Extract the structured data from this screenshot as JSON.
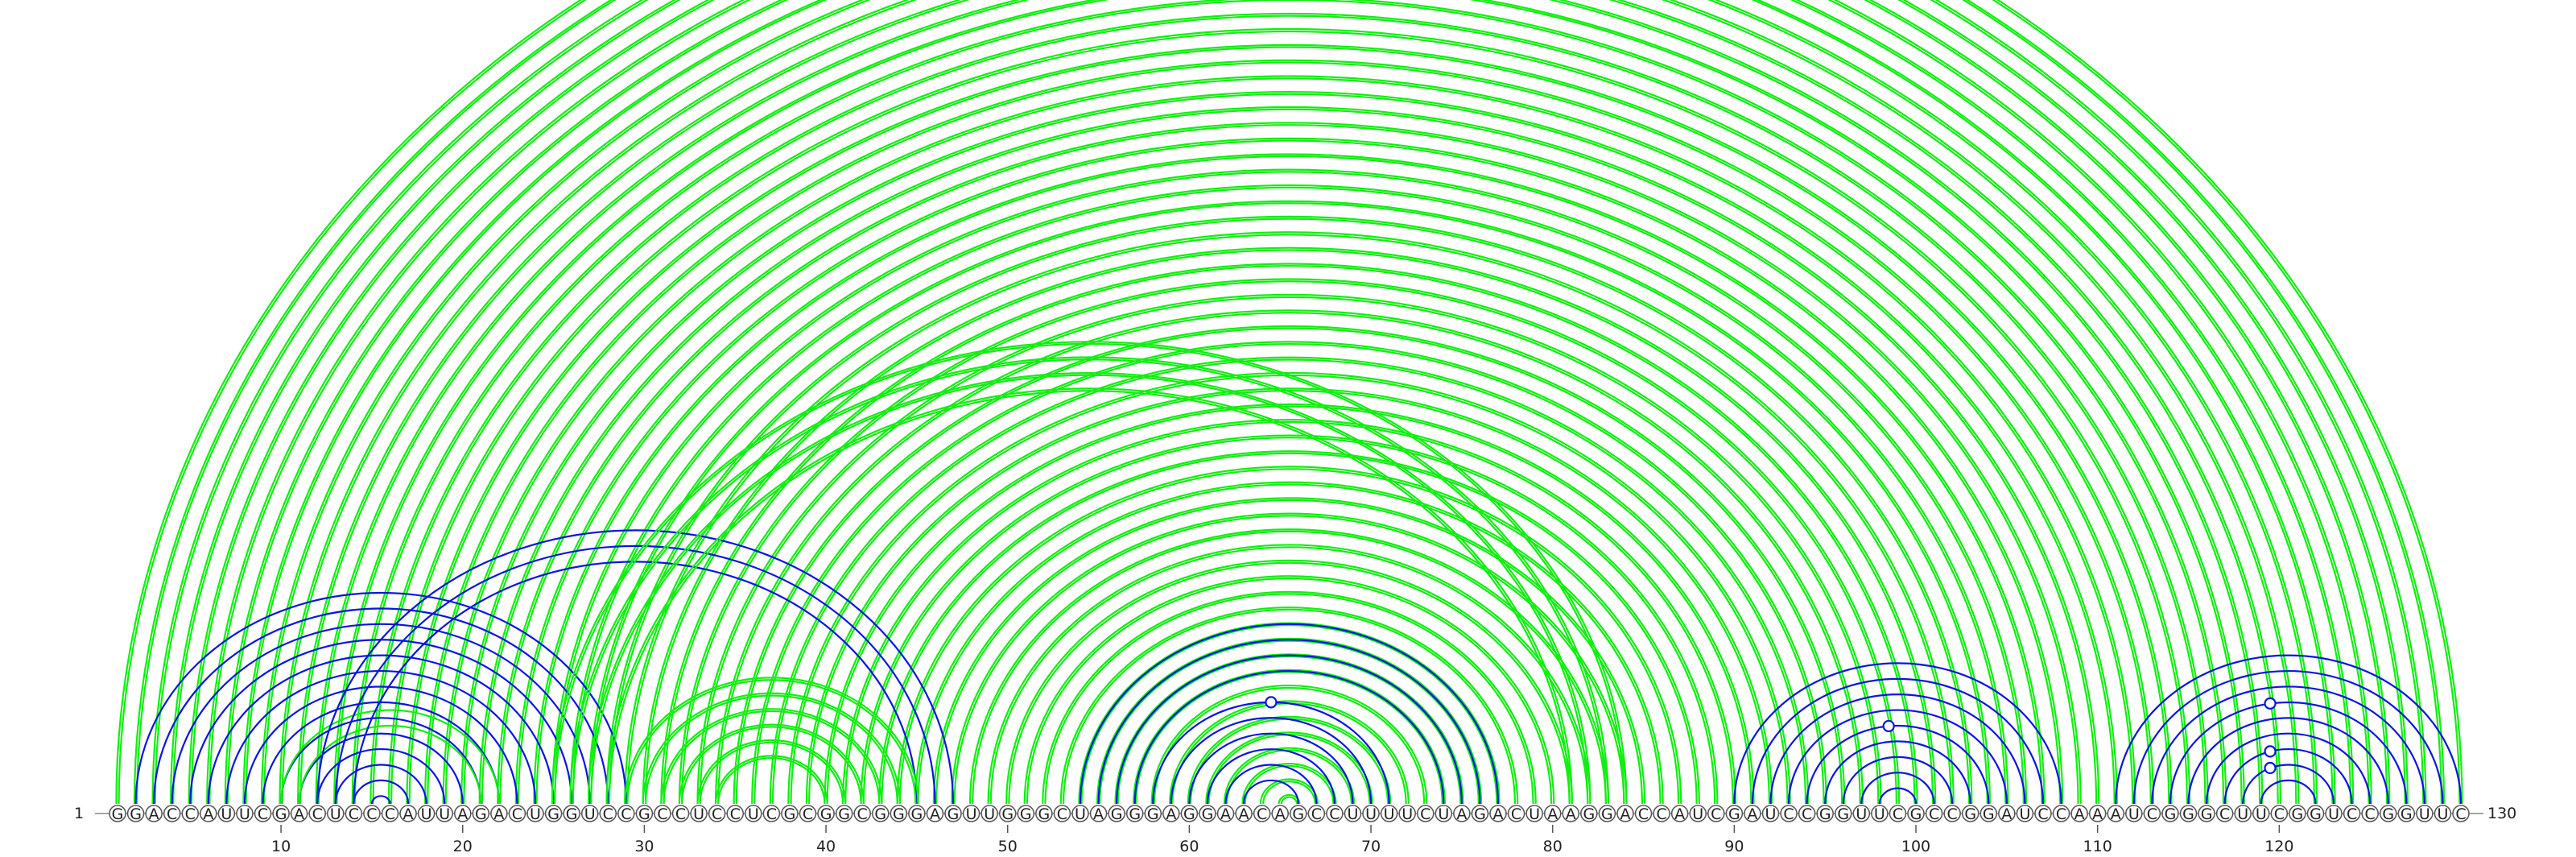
{
  "diagram": {
    "type": "rna-arc-diagram",
    "sequence": "GGACCAUUCGACUCCCAUUAGACUGGUCCGCCUCCUCGCGGCGGGAGUUGGGCUAGGGAGGAACAGCCUUUUCUAGACUAAGGACCAUCGAUCCGGUUCGCCGGAUCCAAAUCGGGCUUCGGUCCGGUUC",
    "start_label": "1",
    "end_label": "130",
    "ticks": [
      "10",
      "20",
      "30",
      "40",
      "50",
      "60",
      "70",
      "80",
      "90",
      "100",
      "110",
      "120"
    ],
    "colors": {
      "blue": "#0a16e0",
      "green": "#12ee12"
    },
    "arcs": [
      {
        "from": 1,
        "to": 130,
        "color": "green",
        "double": true
      },
      {
        "from": 2,
        "to": 129,
        "color": "green",
        "double": true
      },
      {
        "from": 3,
        "to": 128,
        "color": "green",
        "double": true
      },
      {
        "from": 4,
        "to": 127,
        "color": "green",
        "double": true
      },
      {
        "from": 5,
        "to": 126,
        "color": "green",
        "double": true
      },
      {
        "from": 6,
        "to": 125,
        "color": "green",
        "double": true
      },
      {
        "from": 7,
        "to": 124,
        "color": "green",
        "double": true
      },
      {
        "from": 8,
        "to": 123,
        "color": "green",
        "double": true
      },
      {
        "from": 9,
        "to": 122,
        "color": "green",
        "double": true
      },
      {
        "from": 10,
        "to": 121,
        "color": "green",
        "double": true
      },
      {
        "from": 11,
        "to": 120,
        "color": "green",
        "double": true
      },
      {
        "from": 12,
        "to": 119,
        "color": "green",
        "double": true
      },
      {
        "from": 13,
        "to": 118,
        "color": "green",
        "double": true
      },
      {
        "from": 14,
        "to": 117,
        "color": "green",
        "double": true
      },
      {
        "from": 15,
        "to": 116,
        "color": "green",
        "double": true
      },
      {
        "from": 16,
        "to": 115,
        "color": "green",
        "double": true
      },
      {
        "from": 17,
        "to": 114,
        "color": "green",
        "double": true
      },
      {
        "from": 18,
        "to": 113,
        "color": "green",
        "double": true
      },
      {
        "from": 19,
        "to": 112,
        "color": "green",
        "double": true
      },
      {
        "from": 20,
        "to": 111,
        "color": "green",
        "double": true
      },
      {
        "from": 21,
        "to": 110,
        "color": "green",
        "double": true
      },
      {
        "from": 22,
        "to": 109,
        "color": "green",
        "double": true
      },
      {
        "from": 23,
        "to": 108,
        "color": "green",
        "double": true
      },
      {
        "from": 24,
        "to": 107,
        "color": "green",
        "double": true
      },
      {
        "from": 25,
        "to": 106,
        "color": "green",
        "double": true
      },
      {
        "from": 26,
        "to": 105,
        "color": "green",
        "double": true
      },
      {
        "from": 27,
        "to": 104,
        "color": "green",
        "double": true
      },
      {
        "from": 28,
        "to": 103,
        "color": "green",
        "double": true
      },
      {
        "from": 29,
        "to": 102,
        "color": "green",
        "double": true
      },
      {
        "from": 30,
        "to": 101,
        "color": "green",
        "double": true
      },
      {
        "from": 31,
        "to": 100,
        "color": "green",
        "double": true
      },
      {
        "from": 32,
        "to": 99,
        "color": "green",
        "double": true
      },
      {
        "from": 33,
        "to": 98,
        "color": "green",
        "double": true
      },
      {
        "from": 34,
        "to": 97,
        "color": "green",
        "double": true
      },
      {
        "from": 35,
        "to": 96,
        "color": "green",
        "double": true
      },
      {
        "from": 36,
        "to": 95,
        "color": "green",
        "double": true
      },
      {
        "from": 37,
        "to": 94,
        "color": "green",
        "double": true
      },
      {
        "from": 38,
        "to": 93,
        "color": "green",
        "double": true
      },
      {
        "from": 39,
        "to": 92,
        "color": "green",
        "double": true
      },
      {
        "from": 40,
        "to": 91,
        "color": "green",
        "double": true
      },
      {
        "from": 41,
        "to": 90,
        "color": "green",
        "double": true
      },
      {
        "from": 42,
        "to": 89,
        "color": "green",
        "double": true
      },
      {
        "from": 43,
        "to": 88,
        "color": "green",
        "double": true
      },
      {
        "from": 44,
        "to": 87,
        "color": "green",
        "double": true
      },
      {
        "from": 45,
        "to": 86,
        "color": "green",
        "double": true
      },
      {
        "from": 46,
        "to": 85,
        "color": "green",
        "double": true
      },
      {
        "from": 47,
        "to": 84,
        "color": "green",
        "double": true
      },
      {
        "from": 48,
        "to": 83,
        "color": "green",
        "double": true
      },
      {
        "from": 49,
        "to": 82,
        "color": "green",
        "double": true
      },
      {
        "from": 50,
        "to": 81,
        "color": "green",
        "double": true
      },
      {
        "from": 51,
        "to": 80,
        "color": "green",
        "double": true
      },
      {
        "from": 52,
        "to": 79,
        "color": "green",
        "double": true
      },
      {
        "from": 53,
        "to": 78,
        "color": "green",
        "double": true
      },
      {
        "from": 54,
        "to": 77,
        "color": "green",
        "double": true
      },
      {
        "from": 55,
        "to": 76,
        "color": "green",
        "double": true
      },
      {
        "from": 56,
        "to": 75,
        "color": "green",
        "double": true
      },
      {
        "from": 57,
        "to": 74,
        "color": "green",
        "double": true
      },
      {
        "from": 58,
        "to": 73,
        "color": "green",
        "double": true
      },
      {
        "from": 59,
        "to": 72,
        "color": "green",
        "double": true
      },
      {
        "from": 60,
        "to": 71,
        "color": "green",
        "double": true
      },
      {
        "from": 61,
        "to": 70,
        "color": "green",
        "double": true
      },
      {
        "from": 62,
        "to": 69,
        "color": "green",
        "double": true
      },
      {
        "from": 63,
        "to": 68,
        "color": "green",
        "double": true
      },
      {
        "from": 64,
        "to": 67,
        "color": "green",
        "double": true
      },
      {
        "from": 65,
        "to": 66,
        "color": "green",
        "double": true
      },
      {
        "from": 2,
        "to": 29,
        "color": "blue",
        "double": false
      },
      {
        "from": 3,
        "to": 28,
        "color": "blue",
        "double": false
      },
      {
        "from": 4,
        "to": 27,
        "color": "blue",
        "double": false
      },
      {
        "from": 5,
        "to": 26,
        "color": "blue",
        "double": false
      },
      {
        "from": 6,
        "to": 25,
        "color": "blue",
        "double": false
      },
      {
        "from": 7,
        "to": 24,
        "color": "blue",
        "double": false
      },
      {
        "from": 8,
        "to": 23,
        "color": "blue",
        "double": false
      },
      {
        "from": 9,
        "to": 22,
        "color": "blue",
        "double": false
      },
      {
        "from": 10,
        "to": 21,
        "color": "blue",
        "double": false
      },
      {
        "from": 11,
        "to": 20,
        "color": "blue",
        "double": false
      },
      {
        "from": 12,
        "to": 19,
        "color": "blue",
        "double": false
      },
      {
        "from": 13,
        "to": 18,
        "color": "blue",
        "double": false
      },
      {
        "from": 14,
        "to": 17,
        "color": "blue",
        "double": false
      },
      {
        "from": 15,
        "to": 16,
        "color": "blue",
        "double": false
      },
      {
        "from": 10,
        "to": 22,
        "color": "green",
        "double": false
      },
      {
        "from": 11,
        "to": 21,
        "color": "green",
        "double": false
      },
      {
        "from": 12,
        "to": 47,
        "color": "blue",
        "double": false
      },
      {
        "from": 13,
        "to": 46,
        "color": "blue",
        "double": false
      },
      {
        "from": 14,
        "to": 45,
        "color": "blue",
        "double": false
      },
      {
        "from": 25,
        "to": 84,
        "color": "green",
        "double": true
      },
      {
        "from": 26,
        "to": 83,
        "color": "green",
        "double": true
      },
      {
        "from": 27,
        "to": 82,
        "color": "green",
        "double": true
      },
      {
        "from": 28,
        "to": 81,
        "color": "green",
        "double": true
      },
      {
        "from": 29,
        "to": 45,
        "color": "green",
        "double": true
      },
      {
        "from": 30,
        "to": 44,
        "color": "green",
        "double": true
      },
      {
        "from": 31,
        "to": 43,
        "color": "green",
        "double": true
      },
      {
        "from": 32,
        "to": 42,
        "color": "green",
        "double": true
      },
      {
        "from": 33,
        "to": 41,
        "color": "green",
        "double": true
      },
      {
        "from": 34,
        "to": 40,
        "color": "green",
        "double": true
      },
      {
        "from": 54,
        "to": 77,
        "color": "blue",
        "double": false
      },
      {
        "from": 55,
        "to": 76,
        "color": "blue",
        "double": false
      },
      {
        "from": 56,
        "to": 75,
        "color": "blue",
        "double": false
      },
      {
        "from": 57,
        "to": 74,
        "color": "blue",
        "double": false
      },
      {
        "from": 58,
        "to": 71,
        "color": "blue",
        "double": false
      },
      {
        "from": 59,
        "to": 70,
        "color": "blue",
        "double": false
      },
      {
        "from": 60,
        "to": 69,
        "color": "blue",
        "double": false
      },
      {
        "from": 61,
        "to": 68,
        "color": "blue",
        "double": false
      },
      {
        "from": 62,
        "to": 67,
        "color": "blue",
        "double": false
      },
      {
        "from": 63,
        "to": 66,
        "color": "blue",
        "double": false
      },
      {
        "from": 90,
        "to": 108,
        "color": "blue",
        "double": false
      },
      {
        "from": 91,
        "to": 107,
        "color": "blue",
        "double": false
      },
      {
        "from": 92,
        "to": 106,
        "color": "blue",
        "double": false
      },
      {
        "from": 93,
        "to": 105,
        "color": "blue",
        "double": false
      },
      {
        "from": 94,
        "to": 104,
        "color": "blue",
        "double": false
      },
      {
        "from": 95,
        "to": 103,
        "color": "blue",
        "double": false
      },
      {
        "from": 96,
        "to": 102,
        "color": "blue",
        "double": false
      },
      {
        "from": 97,
        "to": 101,
        "color": "blue",
        "double": false
      },
      {
        "from": 98,
        "to": 100,
        "color": "blue",
        "double": false
      },
      {
        "from": 111,
        "to": 130,
        "color": "blue",
        "double": false
      },
      {
        "from": 112,
        "to": 129,
        "color": "blue",
        "double": false
      },
      {
        "from": 113,
        "to": 128,
        "color": "blue",
        "double": false
      },
      {
        "from": 114,
        "to": 127,
        "color": "blue",
        "double": false
      },
      {
        "from": 115,
        "to": 126,
        "color": "blue",
        "double": false
      },
      {
        "from": 116,
        "to": 125,
        "color": "blue",
        "double": false
      },
      {
        "from": 117,
        "to": 124,
        "color": "blue",
        "double": false
      },
      {
        "from": 118,
        "to": 123,
        "color": "blue",
        "double": false
      },
      {
        "from": 119,
        "to": 122,
        "color": "blue",
        "double": false
      }
    ],
    "markers": [
      {
        "between": [
          65,
          66
        ],
        "color": "green",
        "arc_from": 1,
        "arc_to": 130
      },
      {
        "between": [
          64,
          65
        ],
        "color": "blue",
        "arc_from": 58,
        "arc_to": 71
      },
      {
        "between": [
          98,
          99
        ],
        "color": "blue",
        "arc_from": 94,
        "arc_to": 104
      },
      {
        "between": [
          119,
          120
        ],
        "color": "blue",
        "arc_from": 114,
        "arc_to": 127
      },
      {
        "between": [
          119,
          120
        ],
        "color": "blue",
        "arc_from": 117,
        "arc_to": 124
      },
      {
        "between": [
          119,
          120
        ],
        "color": "blue",
        "arc_from": 118,
        "arc_to": 123
      }
    ]
  }
}
